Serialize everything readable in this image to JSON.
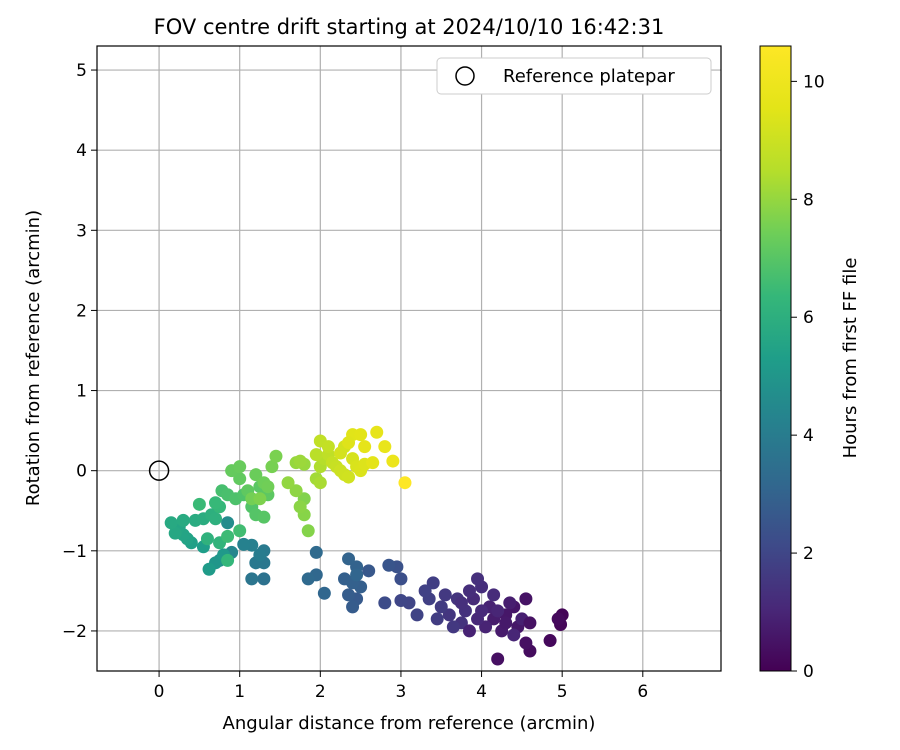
{
  "chart_data": {
    "type": "scatter",
    "title": "FOV centre drift starting at 2024/10/10 16:42:31",
    "xlabel": "Angular distance from reference (arcmin)",
    "ylabel": "Rotation from reference (arcmin)",
    "xlim": [
      -0.77,
      6.97
    ],
    "ylim": [
      -2.5,
      5.3
    ],
    "xticks": [
      0,
      1,
      2,
      3,
      4,
      5,
      6
    ],
    "yticks": [
      -2,
      -1,
      0,
      1,
      2,
      3,
      4,
      5
    ],
    "grid": true,
    "legend": {
      "placement": "top-right",
      "entries": [
        {
          "label": "Reference platepar",
          "marker": "open-circle"
        }
      ]
    },
    "reference_point": {
      "x": 0,
      "y": 0
    },
    "colorbar": {
      "label": "Hours from first FF file",
      "range": [
        0,
        10.6
      ],
      "ticks": [
        0,
        2,
        4,
        6,
        8,
        10
      ],
      "colormap": "viridis"
    },
    "series": [
      {
        "points": [
          {
            "x": 5.0,
            "y": -1.8,
            "t": 0.1
          },
          {
            "x": 4.98,
            "y": -1.92,
            "t": 0.15
          },
          {
            "x": 4.85,
            "y": -2.12,
            "t": 0.2
          },
          {
            "x": 4.95,
            "y": -1.85,
            "t": 0.25
          },
          {
            "x": 4.6,
            "y": -2.25,
            "t": 0.3
          },
          {
            "x": 4.55,
            "y": -2.15,
            "t": 0.4
          },
          {
            "x": 4.2,
            "y": -2.35,
            "t": 0.4
          },
          {
            "x": 4.55,
            "y": -1.6,
            "t": 0.5
          },
          {
            "x": 4.4,
            "y": -1.7,
            "t": 0.55
          },
          {
            "x": 4.3,
            "y": -1.8,
            "t": 0.6
          },
          {
            "x": 4.45,
            "y": -1.95,
            "t": 0.6
          },
          {
            "x": 4.25,
            "y": -2.0,
            "t": 0.7
          },
          {
            "x": 4.15,
            "y": -1.85,
            "t": 0.75
          },
          {
            "x": 4.35,
            "y": -1.65,
            "t": 0.8
          },
          {
            "x": 4.5,
            "y": -1.85,
            "t": 0.85
          },
          {
            "x": 4.1,
            "y": -1.7,
            "t": 0.9
          },
          {
            "x": 4.05,
            "y": -1.95,
            "t": 0.95
          },
          {
            "x": 4.2,
            "y": -1.75,
            "t": 1.0
          },
          {
            "x": 4.4,
            "y": -2.05,
            "t": 1.0
          },
          {
            "x": 3.95,
            "y": -1.85,
            "t": 1.05
          },
          {
            "x": 4.0,
            "y": -1.75,
            "t": 1.1
          },
          {
            "x": 3.9,
            "y": -1.6,
            "t": 1.15
          },
          {
            "x": 4.15,
            "y": -1.55,
            "t": 1.2
          },
          {
            "x": 4.0,
            "y": -1.45,
            "t": 1.25
          },
          {
            "x": 3.85,
            "y": -1.5,
            "t": 1.25
          },
          {
            "x": 3.95,
            "y": -1.35,
            "t": 1.3
          },
          {
            "x": 3.8,
            "y": -1.75,
            "t": 1.35
          },
          {
            "x": 3.75,
            "y": -1.9,
            "t": 1.4
          },
          {
            "x": 3.7,
            "y": -1.6,
            "t": 1.45
          },
          {
            "x": 3.6,
            "y": -1.8,
            "t": 1.5
          },
          {
            "x": 3.65,
            "y": -1.95,
            "t": 1.55
          },
          {
            "x": 3.55,
            "y": -1.55,
            "t": 1.6
          },
          {
            "x": 3.5,
            "y": -1.7,
            "t": 1.65
          },
          {
            "x": 3.45,
            "y": -1.85,
            "t": 1.7
          },
          {
            "x": 3.4,
            "y": -1.4,
            "t": 1.75
          },
          {
            "x": 3.35,
            "y": -1.6,
            "t": 1.8
          },
          {
            "x": 3.3,
            "y": -1.5,
            "t": 1.85
          },
          {
            "x": 3.2,
            "y": -1.8,
            "t": 1.9
          },
          {
            "x": 3.1,
            "y": -1.65,
            "t": 1.95
          },
          {
            "x": 3.0,
            "y": -1.62,
            "t": 2.0
          },
          {
            "x": 3.85,
            "y": -2.0,
            "t": 0.9
          },
          {
            "x": 4.6,
            "y": -1.9,
            "t": 0.45
          },
          {
            "x": 4.3,
            "y": -1.9,
            "t": 0.65
          },
          {
            "x": 3.75,
            "y": -1.65,
            "t": 1.3
          },
          {
            "x": 2.8,
            "y": -1.65,
            "t": 2.2
          },
          {
            "x": 3.0,
            "y": -1.35,
            "t": 2.3
          },
          {
            "x": 2.95,
            "y": -1.2,
            "t": 2.4
          },
          {
            "x": 2.85,
            "y": -1.18,
            "t": 2.5
          },
          {
            "x": 2.6,
            "y": -1.25,
            "t": 2.6
          },
          {
            "x": 2.45,
            "y": -1.6,
            "t": 2.7
          },
          {
            "x": 2.4,
            "y": -1.7,
            "t": 2.75
          },
          {
            "x": 2.35,
            "y": -1.55,
            "t": 2.8
          },
          {
            "x": 2.5,
            "y": -1.45,
            "t": 2.85
          },
          {
            "x": 2.3,
            "y": -1.35,
            "t": 2.9
          },
          {
            "x": 2.4,
            "y": -1.4,
            "t": 2.95
          },
          {
            "x": 2.45,
            "y": -1.2,
            "t": 3.0
          },
          {
            "x": 2.35,
            "y": -1.1,
            "t": 3.05
          },
          {
            "x": 2.45,
            "y": -1.3,
            "t": 3.1
          },
          {
            "x": 2.05,
            "y": -1.53,
            "t": 3.15
          },
          {
            "x": 1.95,
            "y": -1.3,
            "t": 3.2
          },
          {
            "x": 1.85,
            "y": -1.35,
            "t": 3.25
          },
          {
            "x": 1.95,
            "y": -1.02,
            "t": 3.3
          },
          {
            "x": 1.3,
            "y": -1.35,
            "t": 3.6
          },
          {
            "x": 1.15,
            "y": -1.35,
            "t": 3.7
          },
          {
            "x": 1.3,
            "y": -1.15,
            "t": 3.8
          },
          {
            "x": 1.2,
            "y": -1.15,
            "t": 3.85
          },
          {
            "x": 1.3,
            "y": -1.0,
            "t": 3.9
          },
          {
            "x": 1.25,
            "y": -1.05,
            "t": 4.0
          },
          {
            "x": 1.15,
            "y": -0.93,
            "t": 4.1
          },
          {
            "x": 1.05,
            "y": -0.92,
            "t": 4.2
          },
          {
            "x": 0.9,
            "y": -1.02,
            "t": 4.4
          },
          {
            "x": 0.85,
            "y": -0.65,
            "t": 4.6
          },
          {
            "x": 0.75,
            "y": -1.12,
            "t": 4.8
          },
          {
            "x": 0.7,
            "y": -1.15,
            "t": 5.0
          },
          {
            "x": 0.8,
            "y": -1.05,
            "t": 5.1
          },
          {
            "x": 0.62,
            "y": -1.23,
            "t": 5.2
          },
          {
            "x": 0.55,
            "y": -0.95,
            "t": 5.3
          },
          {
            "x": 0.4,
            "y": -0.9,
            "t": 5.4
          },
          {
            "x": 0.35,
            "y": -0.85,
            "t": 5.5
          },
          {
            "x": 0.3,
            "y": -0.8,
            "t": 5.55
          },
          {
            "x": 0.25,
            "y": -0.7,
            "t": 5.6
          },
          {
            "x": 0.2,
            "y": -0.78,
            "t": 5.7
          },
          {
            "x": 0.15,
            "y": -0.65,
            "t": 5.75
          },
          {
            "x": 0.3,
            "y": -0.62,
            "t": 5.8
          },
          {
            "x": 0.45,
            "y": -0.62,
            "t": 5.85
          },
          {
            "x": 0.55,
            "y": -0.6,
            "t": 5.9
          },
          {
            "x": 0.65,
            "y": -0.55,
            "t": 6.0
          },
          {
            "x": 0.7,
            "y": -0.6,
            "t": 6.05
          },
          {
            "x": 0.6,
            "y": -0.85,
            "t": 6.1
          },
          {
            "x": 0.75,
            "y": -0.9,
            "t": 6.2
          },
          {
            "x": 0.85,
            "y": -1.12,
            "t": 6.3
          },
          {
            "x": 0.75,
            "y": -0.45,
            "t": 6.35
          },
          {
            "x": 0.7,
            "y": -0.4,
            "t": 6.4
          },
          {
            "x": 0.5,
            "y": -0.42,
            "t": 6.45
          },
          {
            "x": 0.85,
            "y": -0.82,
            "t": 6.5
          },
          {
            "x": 1.0,
            "y": -0.75,
            "t": 6.6
          },
          {
            "x": 0.78,
            "y": -0.25,
            "t": 6.7
          },
          {
            "x": 0.85,
            "y": -0.3,
            "t": 6.75
          },
          {
            "x": 0.95,
            "y": -0.35,
            "t": 6.8
          },
          {
            "x": 1.05,
            "y": -0.3,
            "t": 6.85
          },
          {
            "x": 1.15,
            "y": -0.45,
            "t": 6.9
          },
          {
            "x": 1.2,
            "y": -0.55,
            "t": 6.95
          },
          {
            "x": 1.3,
            "y": -0.58,
            "t": 7.0
          },
          {
            "x": 1.25,
            "y": -0.2,
            "t": 7.05
          },
          {
            "x": 1.35,
            "y": -0.3,
            "t": 7.1
          },
          {
            "x": 1.1,
            "y": -0.25,
            "t": 7.15
          },
          {
            "x": 1.0,
            "y": -0.1,
            "t": 7.2
          },
          {
            "x": 0.9,
            "y": 0.0,
            "t": 7.25
          },
          {
            "x": 1.0,
            "y": 0.05,
            "t": 7.3
          },
          {
            "x": 1.2,
            "y": -0.05,
            "t": 7.35
          },
          {
            "x": 1.3,
            "y": -0.15,
            "t": 7.4
          },
          {
            "x": 1.35,
            "y": -0.2,
            "t": 7.45
          },
          {
            "x": 1.15,
            "y": -0.35,
            "t": 7.5
          },
          {
            "x": 1.4,
            "y": 0.05,
            "t": 7.55
          },
          {
            "x": 1.45,
            "y": 0.18,
            "t": 7.6
          },
          {
            "x": 1.25,
            "y": -0.35,
            "t": 7.65
          },
          {
            "x": 1.8,
            "y": -0.35,
            "t": 7.7
          },
          {
            "x": 1.85,
            "y": -0.75,
            "t": 7.75
          },
          {
            "x": 1.8,
            "y": -0.55,
            "t": 7.8
          },
          {
            "x": 1.75,
            "y": -0.45,
            "t": 7.85
          },
          {
            "x": 1.7,
            "y": -0.25,
            "t": 7.9
          },
          {
            "x": 1.6,
            "y": -0.15,
            "t": 7.95
          },
          {
            "x": 1.7,
            "y": 0.1,
            "t": 8.0
          },
          {
            "x": 1.8,
            "y": 0.08,
            "t": 8.05
          },
          {
            "x": 1.75,
            "y": 0.12,
            "t": 8.1
          },
          {
            "x": 1.95,
            "y": -0.1,
            "t": 8.2
          },
          {
            "x": 2.0,
            "y": -0.15,
            "t": 8.3
          },
          {
            "x": 2.0,
            "y": 0.05,
            "t": 8.4
          },
          {
            "x": 2.05,
            "y": 0.15,
            "t": 8.5
          },
          {
            "x": 1.95,
            "y": 0.2,
            "t": 8.6
          },
          {
            "x": 2.1,
            "y": 0.2,
            "t": 8.7
          },
          {
            "x": 2.0,
            "y": 0.37,
            "t": 8.75
          },
          {
            "x": 2.1,
            "y": 0.3,
            "t": 8.8
          },
          {
            "x": 2.15,
            "y": 0.1,
            "t": 8.85
          },
          {
            "x": 2.2,
            "y": 0.05,
            "t": 8.9
          },
          {
            "x": 2.25,
            "y": 0.0,
            "t": 9.0
          },
          {
            "x": 2.3,
            "y": -0.05,
            "t": 9.05
          },
          {
            "x": 2.35,
            "y": -0.08,
            "t": 9.1
          },
          {
            "x": 2.3,
            "y": 0.3,
            "t": 9.15
          },
          {
            "x": 2.25,
            "y": 0.22,
            "t": 9.2
          },
          {
            "x": 2.4,
            "y": 0.15,
            "t": 9.25
          },
          {
            "x": 2.45,
            "y": 0.05,
            "t": 9.3
          },
          {
            "x": 2.5,
            "y": 0.0,
            "t": 9.35
          },
          {
            "x": 2.55,
            "y": 0.08,
            "t": 9.4
          },
          {
            "x": 2.4,
            "y": 0.45,
            "t": 9.5
          },
          {
            "x": 2.5,
            "y": 0.45,
            "t": 9.55
          },
          {
            "x": 2.65,
            "y": 0.1,
            "t": 9.6
          },
          {
            "x": 2.7,
            "y": 0.48,
            "t": 9.7
          },
          {
            "x": 2.8,
            "y": 0.3,
            "t": 9.8
          },
          {
            "x": 2.9,
            "y": 0.12,
            "t": 9.9
          },
          {
            "x": 2.35,
            "y": 0.35,
            "t": 9.45
          },
          {
            "x": 2.55,
            "y": 0.3,
            "t": 9.65
          },
          {
            "x": 3.05,
            "y": -0.15,
            "t": 10.6
          }
        ]
      }
    ]
  }
}
